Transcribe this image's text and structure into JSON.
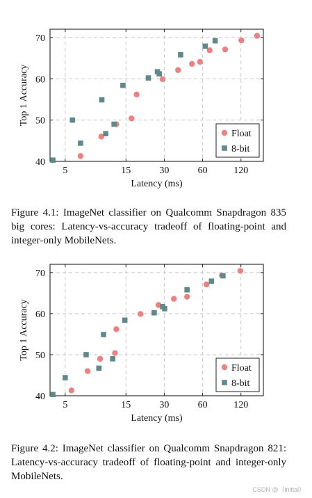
{
  "figures": [
    {
      "caption": "Figure 4.1: ImageNet classifier on Qualcomm Snapdragon 835 big cores: Latency-vs-accuracy tradeoff of floating-point and integer-only MobileNets.",
      "chart_data": {
        "type": "scatter",
        "xlabel": "Latency (ms)",
        "ylabel": "Top 1 Accuracy",
        "xscale": "log",
        "xlim": [
          3.8,
          180
        ],
        "ylim": [
          40,
          72
        ],
        "xticks": [
          5,
          15,
          30,
          60,
          120
        ],
        "yticks": [
          40,
          50,
          60,
          70
        ],
        "grid": true,
        "legend_position": "bottom-right",
        "series": [
          {
            "name": "Float",
            "marker": "circle",
            "color": "#f08080",
            "points": [
              {
                "x": 6.6,
                "y": 41.3
              },
              {
                "x": 9.6,
                "y": 46.0
              },
              {
                "x": 12.6,
                "y": 49.0
              },
              {
                "x": 16.6,
                "y": 50.4
              },
              {
                "x": 18.2,
                "y": 56.2
              },
              {
                "x": 29.1,
                "y": 59.9
              },
              {
                "x": 38.5,
                "y": 62.1
              },
              {
                "x": 49.5,
                "y": 63.6
              },
              {
                "x": 57.2,
                "y": 64.1
              },
              {
                "x": 68.2,
                "y": 66.9
              },
              {
                "x": 90.2,
                "y": 67.1
              },
              {
                "x": 121.0,
                "y": 69.3
              },
              {
                "x": 160.6,
                "y": 70.4
              }
            ]
          },
          {
            "name": "8-bit",
            "marker": "square",
            "color": "#5f8a8b",
            "points": [
              {
                "x": 4.0,
                "y": 40.3
              },
              {
                "x": 5.7,
                "y": 50.0
              },
              {
                "x": 6.6,
                "y": 44.4
              },
              {
                "x": 9.7,
                "y": 54.9
              },
              {
                "x": 10.4,
                "y": 46.7
              },
              {
                "x": 12.1,
                "y": 49.0
              },
              {
                "x": 14.2,
                "y": 58.4
              },
              {
                "x": 22.5,
                "y": 60.2
              },
              {
                "x": 26.5,
                "y": 61.7
              },
              {
                "x": 27.4,
                "y": 61.2
              },
              {
                "x": 40.3,
                "y": 65.8
              },
              {
                "x": 62.9,
                "y": 67.9
              },
              {
                "x": 75.3,
                "y": 69.2
              }
            ]
          }
        ]
      }
    },
    {
      "caption": "Figure 4.2: ImageNet classifier on Qualcomm Snapdragon 821: Latency-vs-accuracy tradeoff of floating-point and integer-only MobileNets.",
      "chart_data": {
        "type": "scatter",
        "xlabel": "Latency (ms)",
        "ylabel": "Top 1 Accuracy",
        "xscale": "log",
        "xlim": [
          3.8,
          180
        ],
        "ylim": [
          40,
          72
        ],
        "xticks": [
          5,
          15,
          30,
          60,
          120
        ],
        "yticks": [
          40,
          50,
          60,
          70
        ],
        "grid": true,
        "legend_position": "bottom-right",
        "series": [
          {
            "name": "Float",
            "marker": "circle",
            "color": "#f08080",
            "points": [
              {
                "x": 5.6,
                "y": 41.3
              },
              {
                "x": 7.5,
                "y": 46.0
              },
              {
                "x": 9.4,
                "y": 49.0
              },
              {
                "x": 12.3,
                "y": 50.4
              },
              {
                "x": 12.6,
                "y": 56.2
              },
              {
                "x": 19.5,
                "y": 59.9
              },
              {
                "x": 27.0,
                "y": 62.1
              },
              {
                "x": 35.7,
                "y": 63.6
              },
              {
                "x": 45.3,
                "y": 64.1
              },
              {
                "x": 64.3,
                "y": 67.1
              },
              {
                "x": 85.0,
                "y": 69.3
              },
              {
                "x": 118.7,
                "y": 70.4
              }
            ]
          },
          {
            "name": "8-bit",
            "marker": "square",
            "color": "#5f8a8b",
            "points": [
              {
                "x": 4.0,
                "y": 40.3
              },
              {
                "x": 5.0,
                "y": 44.4
              },
              {
                "x": 7.3,
                "y": 50.0
              },
              {
                "x": 9.2,
                "y": 46.7
              },
              {
                "x": 10.0,
                "y": 54.9
              },
              {
                "x": 11.8,
                "y": 49.0
              },
              {
                "x": 14.7,
                "y": 58.4
              },
              {
                "x": 25.0,
                "y": 60.2
              },
              {
                "x": 29.1,
                "y": 61.7
              },
              {
                "x": 30.2,
                "y": 61.2
              },
              {
                "x": 45.3,
                "y": 65.8
              },
              {
                "x": 70.4,
                "y": 67.9
              },
              {
                "x": 86.7,
                "y": 69.2
              }
            ]
          }
        ]
      }
    }
  ],
  "watermark": "CSDN @（initial）"
}
